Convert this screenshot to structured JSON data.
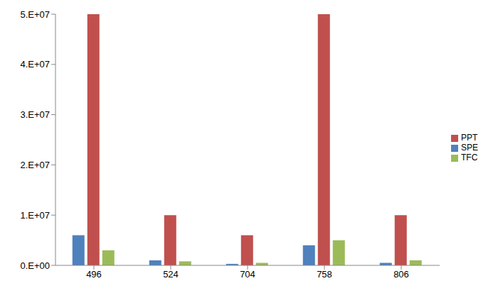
{
  "chart_data": {
    "type": "bar",
    "categories": [
      "496",
      "524",
      "704",
      "758",
      "806"
    ],
    "series": [
      {
        "name": "SPE",
        "color": "#4f81bd",
        "values": [
          6000000,
          1000000,
          300000,
          4000000,
          500000
        ]
      },
      {
        "name": "PPT",
        "color": "#c0504d",
        "values": [
          50000000,
          10000000,
          6000000,
          50000000,
          10000000
        ]
      },
      {
        "name": "TFC",
        "color": "#9bbb59",
        "values": [
          3000000,
          800000,
          500000,
          5000000,
          1000000
        ]
      }
    ],
    "ylim": [
      0,
      50000000
    ],
    "yticks": [
      {
        "value": 0,
        "label": "0.E+00"
      },
      {
        "value": 10000000,
        "label": "1.E+07"
      },
      {
        "value": 20000000,
        "label": "2.E+07"
      },
      {
        "value": 30000000,
        "label": "3.E+07"
      },
      {
        "value": 40000000,
        "label": "4.E+07"
      },
      {
        "value": 50000000,
        "label": "5.E+07"
      }
    ],
    "grid": false,
    "legend": "right"
  }
}
